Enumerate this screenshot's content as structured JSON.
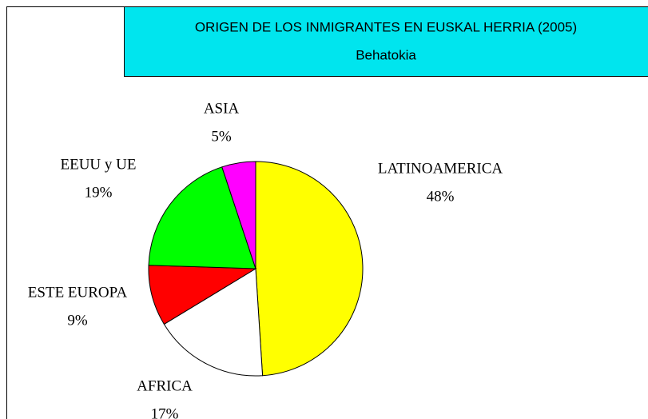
{
  "chart_data": {
    "type": "pie",
    "title": "ORIGEN DE LOS INMIGRANTES EN EUSKAL HERRIA (2005)",
    "subtitle": "Behatokia",
    "categories": [
      "LATINOAMERICA",
      "AFRICA",
      "ESTE EUROPA",
      "EEUU y UE",
      "ASIA"
    ],
    "values": [
      48,
      17,
      9,
      19,
      5
    ],
    "value_labels": [
      "48%",
      "17%",
      "9%",
      "19%",
      "5%"
    ],
    "colors": [
      "#ffff00",
      "#ffffff",
      "#ff0000",
      "#00ff00",
      "#ff00ff"
    ]
  }
}
